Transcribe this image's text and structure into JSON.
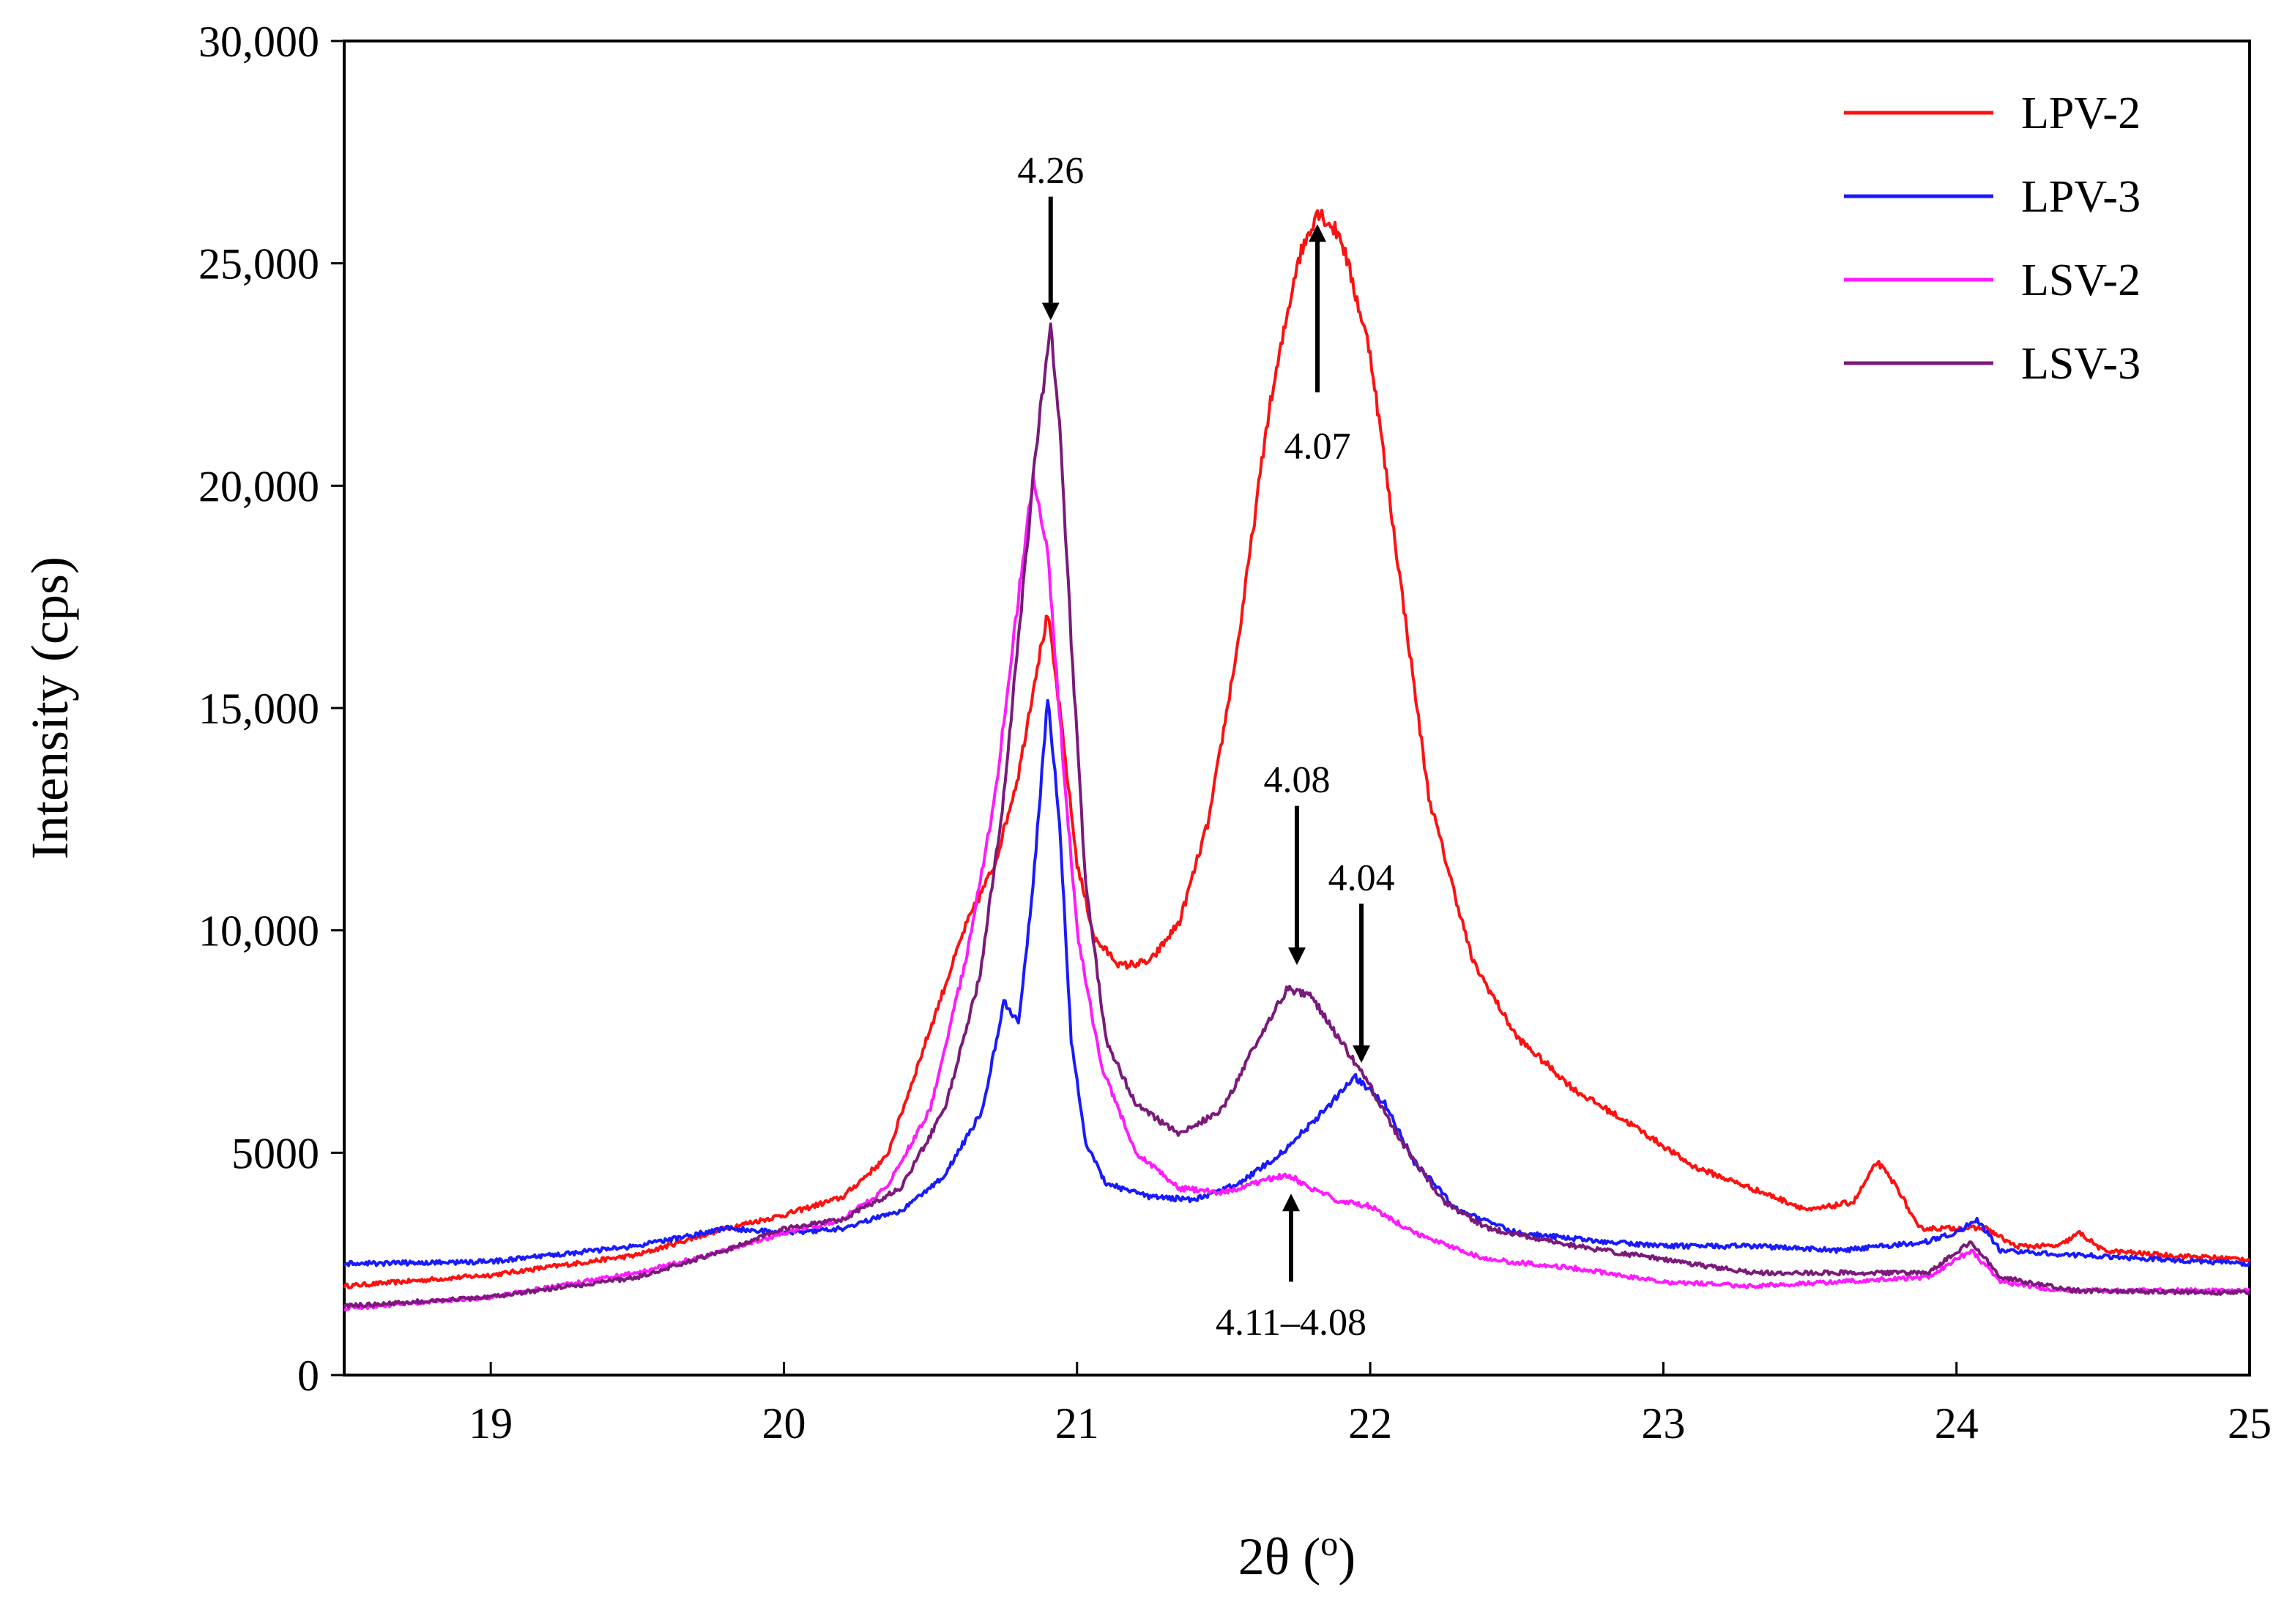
{
  "chart_data": {
    "type": "line",
    "title": "",
    "xlabel": "2θ (",
    "xlabel_sup": "o",
    "xlabel_close": ")",
    "ylabel": "Intensity (cps)",
    "xlim": [
      18.5,
      25
    ],
    "ylim": [
      0,
      30000
    ],
    "x_ticks": [
      19,
      20,
      21,
      22,
      23,
      24,
      25
    ],
    "x_tick_labels": [
      "19",
      "20",
      "21",
      "22",
      "23",
      "24",
      "25"
    ],
    "y_ticks": [
      0,
      5000,
      10000,
      15000,
      20000,
      25000,
      30000
    ],
    "y_tick_labels": [
      "0",
      "5000",
      "10,000",
      "15,000",
      "20,000",
      "25,000",
      "30,000"
    ],
    "grid": false,
    "legend_position": "top-right",
    "series": [
      {
        "name": "LPV-2",
        "color": "#ff1010",
        "points": [
          [
            18.5,
            2000
          ],
          [
            19,
            2250
          ],
          [
            19.5,
            2700
          ],
          [
            19.8,
            3300
          ],
          [
            20,
            3600
          ],
          [
            20.2,
            4000
          ],
          [
            20.35,
            4900
          ],
          [
            20.5,
            7800
          ],
          [
            20.62,
            10100
          ],
          [
            20.72,
            11500
          ],
          [
            20.8,
            13500
          ],
          [
            20.86,
            15800
          ],
          [
            20.9,
            17100
          ],
          [
            20.94,
            15000
          ],
          [
            21,
            11500
          ],
          [
            21.06,
            9800
          ],
          [
            21.15,
            9200
          ],
          [
            21.25,
            9300
          ],
          [
            21.35,
            10200
          ],
          [
            21.45,
            12500
          ],
          [
            21.55,
            16500
          ],
          [
            21.65,
            21500
          ],
          [
            21.75,
            25000
          ],
          [
            21.82,
            26200
          ],
          [
            21.9,
            25600
          ],
          [
            22,
            23000
          ],
          [
            22.1,
            18000
          ],
          [
            22.2,
            13000
          ],
          [
            22.35,
            9300
          ],
          [
            22.5,
            7600
          ],
          [
            22.7,
            6400
          ],
          [
            22.9,
            5600
          ],
          [
            23.1,
            4700
          ],
          [
            23.3,
            4200
          ],
          [
            23.5,
            3700
          ],
          [
            23.65,
            3900
          ],
          [
            23.73,
            4800
          ],
          [
            23.8,
            4200
          ],
          [
            23.87,
            3300
          ],
          [
            24,
            3300
          ],
          [
            24.1,
            3300
          ],
          [
            24.2,
            2900
          ],
          [
            24.35,
            2900
          ],
          [
            24.42,
            3200
          ],
          [
            24.5,
            2800
          ],
          [
            24.7,
            2700
          ],
          [
            25,
            2600
          ]
        ]
      },
      {
        "name": "LPV-3",
        "color": "#1a1aff",
        "points": [
          [
            18.5,
            2500
          ],
          [
            19,
            2550
          ],
          [
            19.5,
            2900
          ],
          [
            19.8,
            3300
          ],
          [
            20,
            3200
          ],
          [
            20.2,
            3300
          ],
          [
            20.4,
            3700
          ],
          [
            20.55,
            4500
          ],
          [
            20.68,
            6000
          ],
          [
            20.75,
            8400
          ],
          [
            20.8,
            7900
          ],
          [
            20.85,
            11000
          ],
          [
            20.9,
            15200
          ],
          [
            20.94,
            12500
          ],
          [
            20.98,
            7500
          ],
          [
            21.03,
            5200
          ],
          [
            21.1,
            4300
          ],
          [
            21.25,
            4000
          ],
          [
            21.4,
            3950
          ],
          [
            21.55,
            4300
          ],
          [
            21.7,
            5000
          ],
          [
            21.85,
            6000
          ],
          [
            21.95,
            6700
          ],
          [
            22.05,
            6100
          ],
          [
            22.15,
            4800
          ],
          [
            22.3,
            3700
          ],
          [
            22.5,
            3200
          ],
          [
            22.8,
            3000
          ],
          [
            23,
            2900
          ],
          [
            23.3,
            2900
          ],
          [
            23.6,
            2800
          ],
          [
            23.9,
            3000
          ],
          [
            24,
            3200
          ],
          [
            24.07,
            3500
          ],
          [
            24.15,
            2800
          ],
          [
            24.4,
            2700
          ],
          [
            25,
            2500
          ]
        ]
      },
      {
        "name": "LSV-2",
        "color": "#ff1aff",
        "points": [
          [
            18.5,
            1500
          ],
          [
            19,
            1750
          ],
          [
            19.5,
            2300
          ],
          [
            19.8,
            2800
          ],
          [
            20,
            3200
          ],
          [
            20.2,
            3500
          ],
          [
            20.35,
            4200
          ],
          [
            20.5,
            6000
          ],
          [
            20.62,
            9300
          ],
          [
            20.72,
            13000
          ],
          [
            20.8,
            17500
          ],
          [
            20.85,
            20200
          ],
          [
            20.9,
            18500
          ],
          [
            20.95,
            14000
          ],
          [
            21,
            10000
          ],
          [
            21.08,
            7000
          ],
          [
            21.2,
            5000
          ],
          [
            21.35,
            4200
          ],
          [
            21.5,
            4100
          ],
          [
            21.65,
            4400
          ],
          [
            21.72,
            4500
          ],
          [
            21.8,
            4200
          ],
          [
            21.9,
            3900
          ],
          [
            22,
            3800
          ],
          [
            22.15,
            3200
          ],
          [
            22.4,
            2600
          ],
          [
            22.7,
            2400
          ],
          [
            23,
            2100
          ],
          [
            23.3,
            2000
          ],
          [
            23.6,
            2100
          ],
          [
            23.9,
            2200
          ],
          [
            24.05,
            2800
          ],
          [
            24.15,
            2100
          ],
          [
            24.35,
            1900
          ],
          [
            25,
            1900
          ]
        ]
      },
      {
        "name": "LSV-3",
        "color": "#7a1a7a",
        "points": [
          [
            18.5,
            1550
          ],
          [
            19,
            1750
          ],
          [
            19.5,
            2200
          ],
          [
            19.8,
            2800
          ],
          [
            20,
            3300
          ],
          [
            20.2,
            3500
          ],
          [
            20.4,
            4200
          ],
          [
            20.55,
            6000
          ],
          [
            20.67,
            9000
          ],
          [
            20.75,
            13000
          ],
          [
            20.82,
            18000
          ],
          [
            20.87,
            21500
          ],
          [
            20.91,
            23500
          ],
          [
            20.94,
            21500
          ],
          [
            20.98,
            16500
          ],
          [
            21.03,
            11000
          ],
          [
            21.1,
            7500
          ],
          [
            21.2,
            6100
          ],
          [
            21.35,
            5400
          ],
          [
            21.5,
            6000
          ],
          [
            21.62,
            7600
          ],
          [
            21.72,
            8700
          ],
          [
            21.8,
            8500
          ],
          [
            21.9,
            7500
          ],
          [
            22,
            6500
          ],
          [
            22.1,
            5300
          ],
          [
            22.25,
            3900
          ],
          [
            22.4,
            3300
          ],
          [
            22.7,
            2900
          ],
          [
            23,
            2600
          ],
          [
            23.3,
            2300
          ],
          [
            23.6,
            2300
          ],
          [
            23.9,
            2300
          ],
          [
            24.05,
            3000
          ],
          [
            24.15,
            2200
          ],
          [
            24.4,
            1900
          ],
          [
            25,
            1850
          ]
        ]
      }
    ],
    "annotations": [
      {
        "label": "4.26",
        "direction": "down",
        "x": 20.91,
        "tip_y": 23800,
        "tail_y": 26500,
        "label_y": 27100
      },
      {
        "label": "4.07",
        "direction": "up",
        "x": 21.82,
        "tip_y": 25800,
        "tail_y": 22100,
        "label_y": 20900
      },
      {
        "label": "4.08",
        "direction": "down",
        "x": 21.75,
        "tip_y": 9300,
        "tail_y": 12800,
        "label_y": 13400
      },
      {
        "label": "4.04",
        "direction": "down",
        "x": 21.97,
        "tip_y": 7100,
        "tail_y": 10600,
        "label_y": 11200
      },
      {
        "label": "4.11–4.08",
        "direction": "up",
        "x": 21.73,
        "tip_y": 4000,
        "tail_y": 2100,
        "label_y": 1200
      }
    ]
  }
}
